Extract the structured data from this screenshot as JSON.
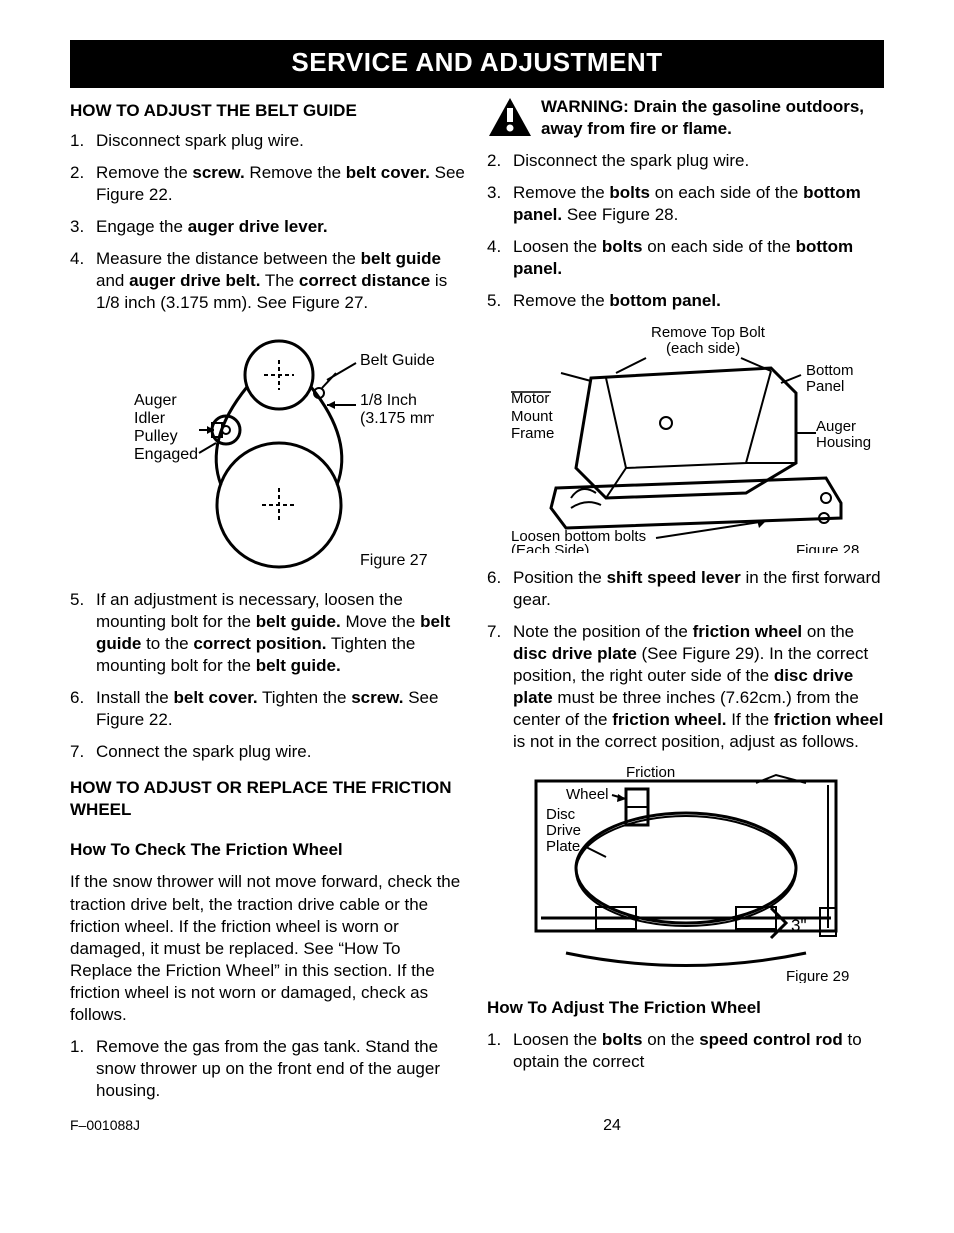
{
  "banner": "SERVICE AND ADJUSTMENT",
  "left": {
    "h_belt": "HOW TO ADJUST THE BELT GUIDE",
    "belt_steps_a": [
      "Disconnect spark plug wire.",
      "Remove the <b>screw.</b> Remove the <b>belt cover.</b> See Figure 22.",
      "Engage the <b>auger drive lever.</b>",
      "Measure the distance between the <b>belt guide</b> and <b>auger drive belt.</b> The <b>correct distance</b> is 1/8 inch (3.175 mm). See Figure 27."
    ],
    "fig27": {
      "belt_guide": "Belt Guide",
      "one_eighth": "1/8 Inch",
      "mm": "(3.175 mm)",
      "auger": "Auger",
      "idler": "Idler",
      "pulley": "Pulley",
      "engaged": "Engaged",
      "caption": "Figure 27"
    },
    "belt_steps_b": [
      "If an adjustment is necessary, loosen the mounting bolt for the <b>belt guide.</b> Move the <b>belt guide</b> to the <b>correct position.</b> Tighten the mounting bolt for the <b>belt guide.</b>",
      "Install the <b>belt cover.</b> Tighten the <b>screw.</b> See Figure 22.",
      "Connect the spark plug wire."
    ],
    "h_friction": "HOW TO ADJUST OR REPLACE THE FRICTION WHEEL",
    "h_check": "How To Check The Friction Wheel",
    "check_para": "If the snow thrower will not move forward, check the traction drive belt, the traction drive cable or the friction wheel. If the friction wheel is worn or damaged, it must be replaced.  See “How To Replace the Friction Wheel” in this section. If the friction wheel is not worn or damaged, check as follows.",
    "check_steps": [
      "Remove the gas from the gas tank. Stand the snow thrower up on the front end of the auger housing."
    ]
  },
  "right": {
    "warn_label": "WARNING:",
    "warn_text": " Drain the gasoline outdoors, away from fire or flame.",
    "steps_a": [
      "Disconnect the spark plug wire.",
      "Remove the <b>bolts</b> on each side of the <b>bottom panel.</b> See Figure 28.",
      "Loosen the <b>bolts</b> on each side of the <b>bottom panel.</b>",
      "Remove the <b>bottom panel.</b>"
    ],
    "fig28": {
      "remove_top": "Remove Top Bolt",
      "each_side": "(each side)",
      "bottom": "Bottom",
      "panel": "Panel",
      "motor": "Motor",
      "mount": "Mount",
      "frame": "Frame",
      "auger": "Auger",
      "housing": "Housing",
      "loosen": "Loosen bottom bolts",
      "each_side2": "(Each Side)",
      "caption": "Figure 28"
    },
    "steps_b": [
      "Position the <b>shift speed lever</b> in the first forward gear.",
      "Note the position of the <b>friction wheel</b> on the <b>disc drive plate</b> (See Figure 29). In the correct position, the right outer side of the <b>disc drive plate</b> must be three inches (7.62cm.) from the center of the <b>friction wheel.</b> If the <b>friction wheel</b> is not in the correct position, adjust as follows."
    ],
    "fig29": {
      "friction": "Friction",
      "wheel": "Wheel",
      "disc": "Disc",
      "drive": "Drive",
      "plate": "Plate",
      "three": "3\"",
      "caption": "Figure 29"
    },
    "h_adjust": "How To Adjust The Friction Wheel",
    "adjust_steps": [
      "Loosen the <b>bolts</b> on the <b>speed control rod</b> to optain the correct"
    ]
  },
  "footer": {
    "code": "F–001088J",
    "page": "24"
  }
}
